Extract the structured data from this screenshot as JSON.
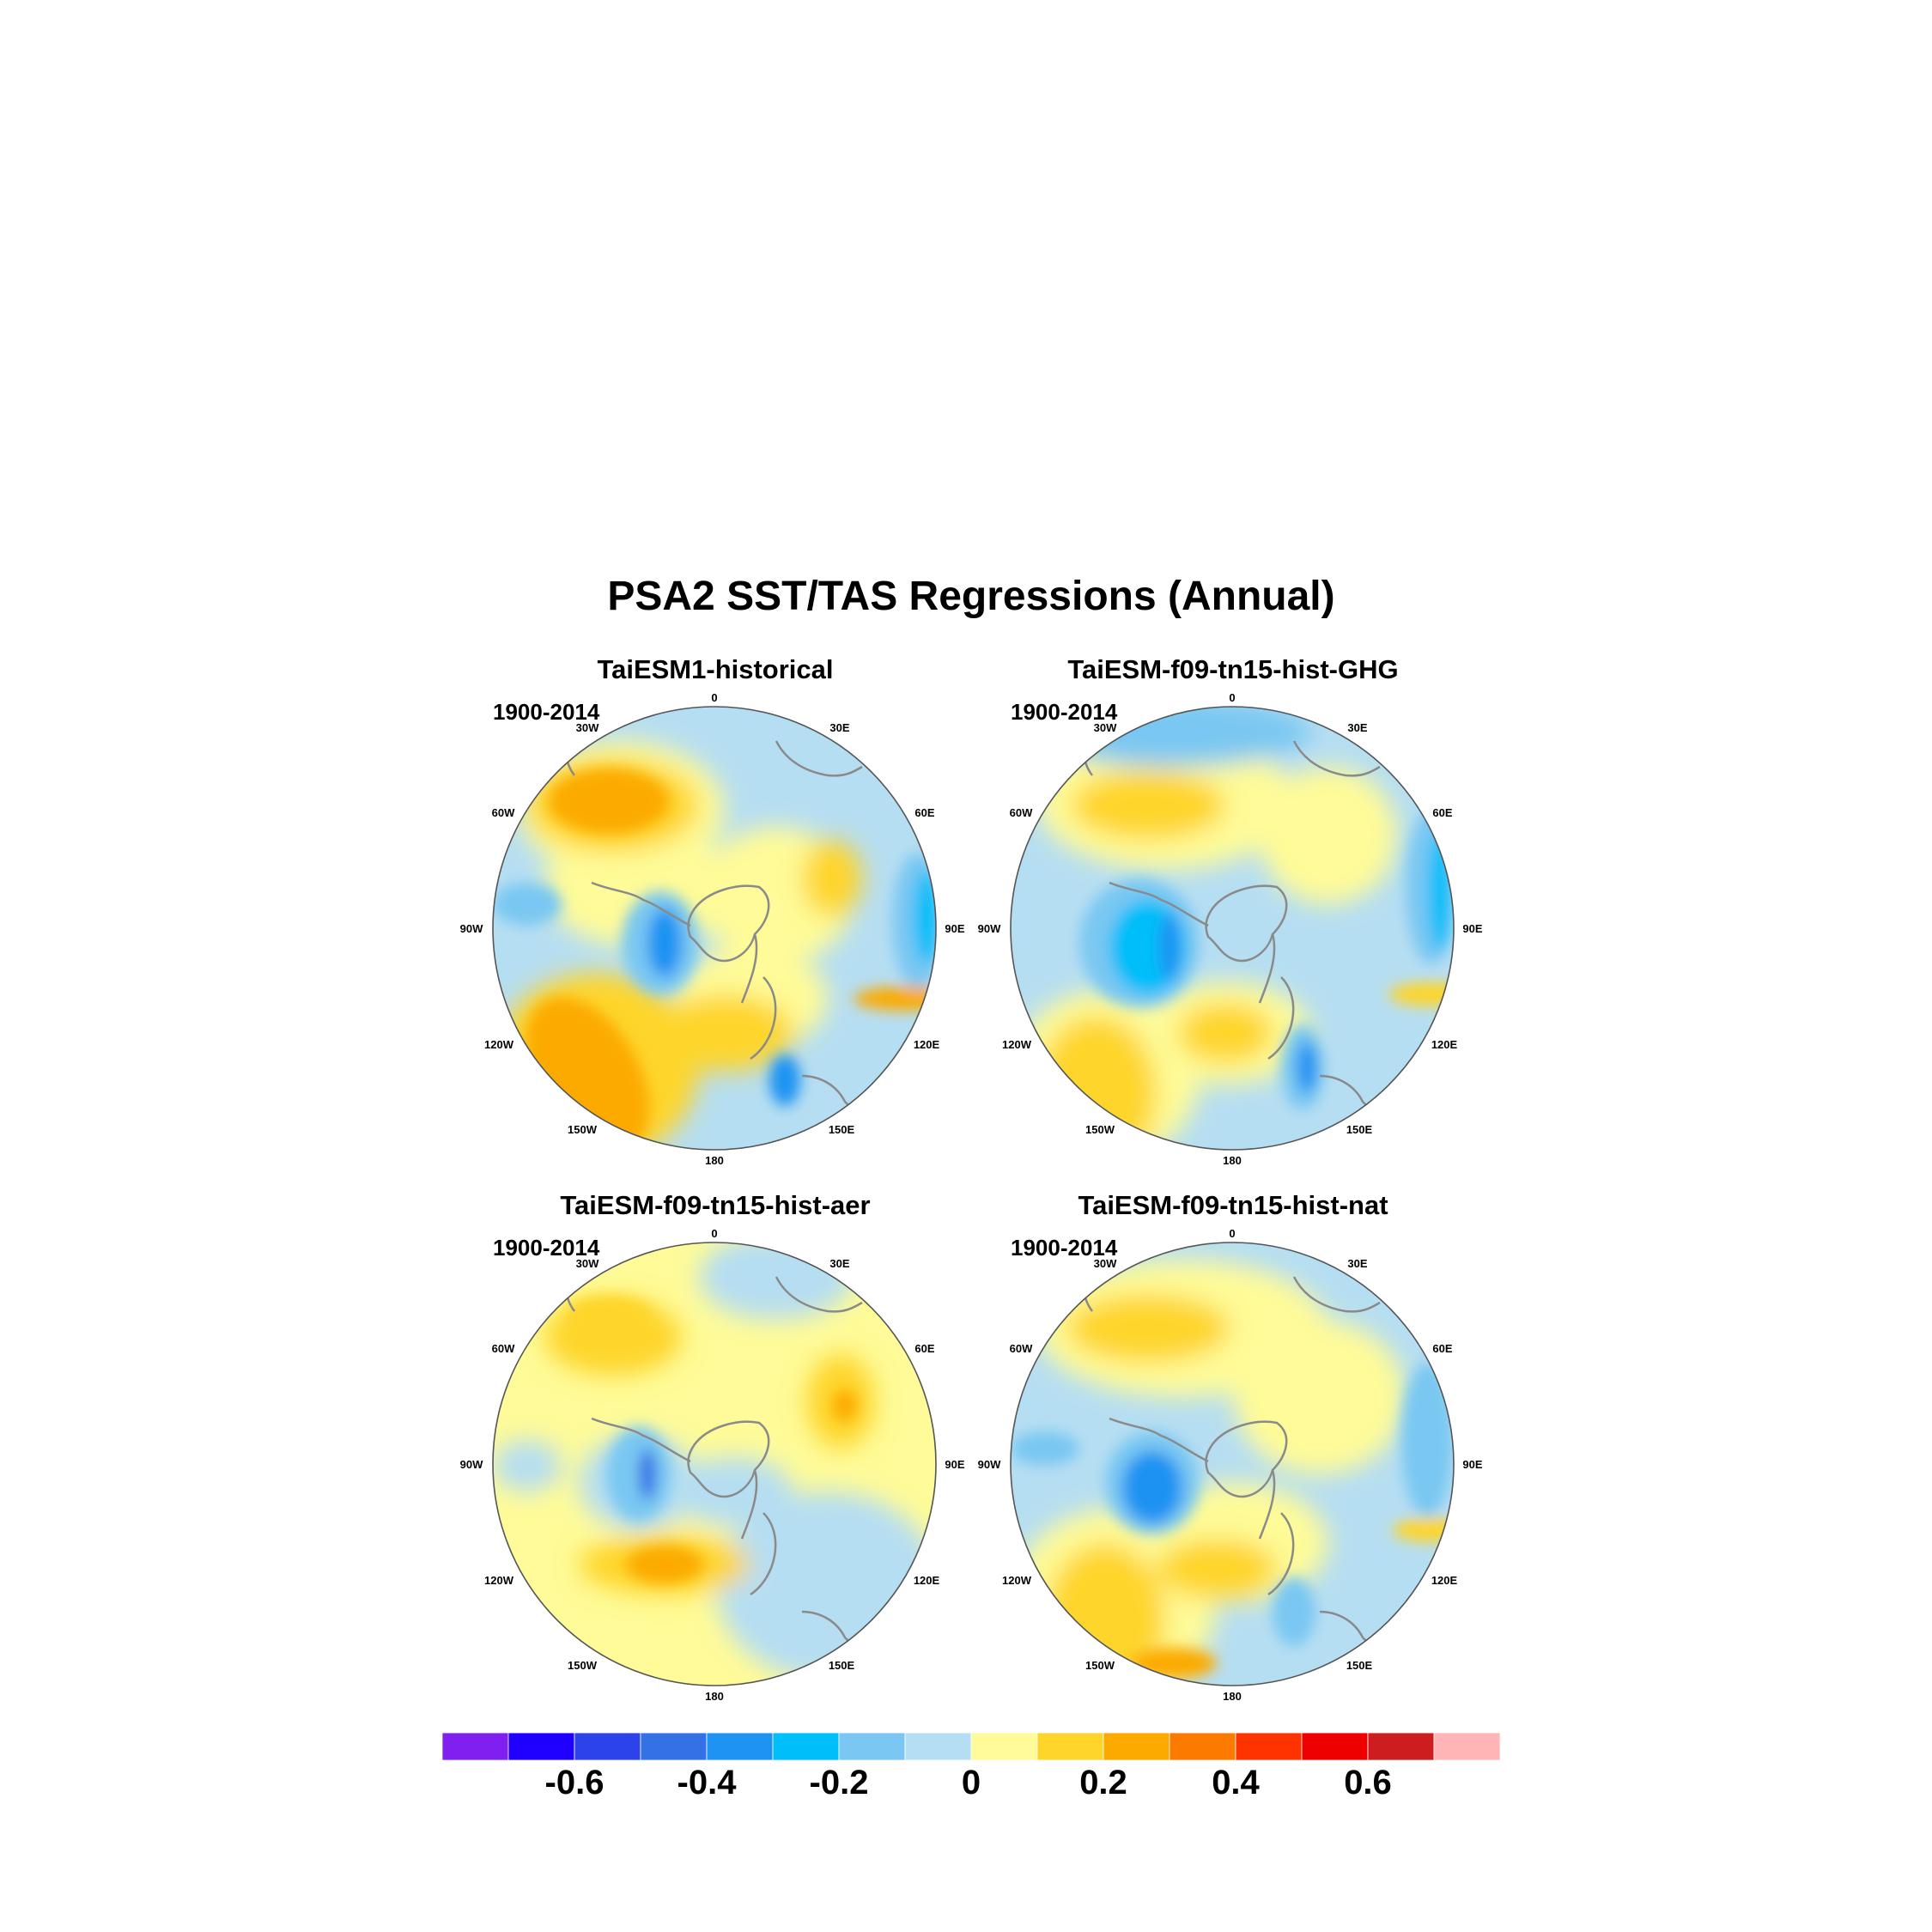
{
  "title": "PSA2 SST/TAS Regressions (Annual)",
  "panels": [
    {
      "title": "TaiESM1-historical",
      "period": "1900-2014"
    },
    {
      "title": "TaiESM-f09-tn15-hist-GHG",
      "period": "1900-2014"
    },
    {
      "title": "TaiESM-f09-tn15-hist-aer",
      "period": "1900-2014"
    },
    {
      "title": "TaiESM-f09-tn15-hist-nat",
      "period": "1900-2014"
    }
  ],
  "longitude_labels": [
    "0",
    "30E",
    "60E",
    "90E",
    "120E",
    "150E",
    "180",
    "150W",
    "120W",
    "90W",
    "60W",
    "30W"
  ],
  "colorbar": {
    "colors": [
      "#7f1ff0",
      "#1f00ff",
      "#2b43e9",
      "#3271e6",
      "#1e93f2",
      "#00bef9",
      "#79c7f2",
      "#b6def2",
      "#fefb98",
      "#fed52a",
      "#fcaa00",
      "#fd7a00",
      "#ff3300",
      "#ee0000",
      "#cd1d1f",
      "#ffb5b5"
    ],
    "tick_labels": [
      "-0.6",
      "-0.4",
      "-0.2",
      "0",
      "0.2",
      "0.4",
      "0.6"
    ]
  },
  "colors": {
    "land_outline": "#8a8a8a",
    "map_border": "#555555"
  }
}
